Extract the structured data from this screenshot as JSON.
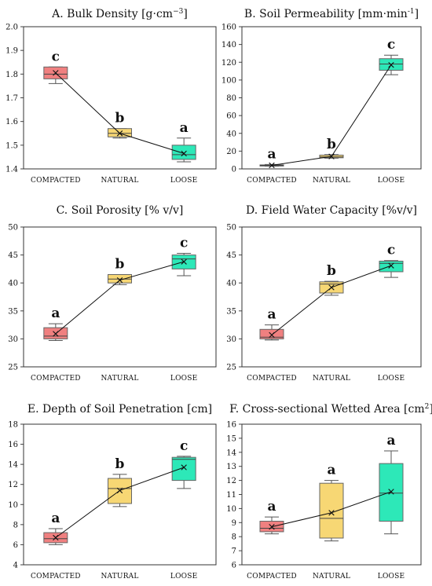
{
  "chart_data": [
    {
      "type": "box",
      "title": "A.  Bulk Density [g·cm",
      "title_sup": "−3",
      "title_end": "]",
      "categories": [
        "COMPACTED",
        "NATURAL",
        "LOOSE"
      ],
      "ylim": [
        1.4,
        2.0
      ],
      "yticks": [
        "1.4",
        "1.5",
        "1.6",
        "1.7",
        "1.8",
        "1.9",
        "2.0"
      ],
      "colors": [
        "#f08080",
        "#f7d774",
        "#2de8b8"
      ],
      "boxes": [
        {
          "min": 1.76,
          "q1": 1.78,
          "median": 1.8,
          "q3": 1.83,
          "max": 1.83,
          "mean": 1.805
        },
        {
          "min": 1.53,
          "q1": 1.535,
          "median": 1.55,
          "q3": 1.57,
          "max": 1.57,
          "mean": 1.55
        },
        {
          "min": 1.43,
          "q1": 1.44,
          "median": 1.46,
          "q3": 1.5,
          "max": 1.53,
          "mean": 1.465
        }
      ],
      "letters": [
        "c",
        "b",
        "a"
      ]
    },
    {
      "type": "box",
      "title": "B.  Soil Permeability [mm·min",
      "title_sup": "-1",
      "title_end": "]",
      "categories": [
        "COMPACTED",
        "NATURAL",
        "LOOSE"
      ],
      "ylim": [
        0,
        160
      ],
      "yticks": [
        "0",
        "20",
        "40",
        "60",
        "80",
        "100",
        "120",
        "140",
        "160"
      ],
      "colors": [
        "#f08080",
        "#f7d774",
        "#2de8b8"
      ],
      "boxes": [
        {
          "min": 3,
          "q1": 3.5,
          "median": 4,
          "q3": 4.5,
          "max": 5,
          "mean": 4
        },
        {
          "min": 12,
          "q1": 12.5,
          "median": 13.5,
          "q3": 15.5,
          "max": 16,
          "mean": 14
        },
        {
          "min": 106,
          "q1": 111,
          "median": 118,
          "q3": 124,
          "max": 128,
          "mean": 117
        }
      ],
      "letters": [
        "a",
        "b",
        "c"
      ]
    },
    {
      "type": "box",
      "title": "C.  Soil Porosity [% v/v]",
      "title_sup": "",
      "title_end": "",
      "categories": [
        "COMPACTED",
        "NATURAL",
        "LOOSE"
      ],
      "ylim": [
        25,
        50
      ],
      "yticks": [
        "25",
        "30",
        "35",
        "40",
        "45",
        "50"
      ],
      "colors": [
        "#f08080",
        "#f7d774",
        "#2de8b8"
      ],
      "boxes": [
        {
          "min": 29.7,
          "q1": 30.0,
          "median": 30.5,
          "q3": 32.0,
          "max": 32.7,
          "mean": 30.9
        },
        {
          "min": 39.7,
          "q1": 40.0,
          "median": 40.7,
          "q3": 41.5,
          "max": 41.5,
          "mean": 40.5
        },
        {
          "min": 41.3,
          "q1": 42.5,
          "median": 44.3,
          "q3": 45.0,
          "max": 45.3,
          "mean": 43.8
        }
      ],
      "letters": [
        "a",
        "b",
        "c"
      ]
    },
    {
      "type": "box",
      "title": "D.  Field Water Capacity [%v/v]",
      "title_sup": "",
      "title_end": "",
      "categories": [
        "COMPACTED",
        "NATURAL",
        "LOOSE"
      ],
      "ylim": [
        25,
        50
      ],
      "yticks": [
        "25",
        "30",
        "35",
        "40",
        "45",
        "50"
      ],
      "colors": [
        "#f08080",
        "#f7d774",
        "#2de8b8"
      ],
      "boxes": [
        {
          "min": 29.8,
          "q1": 30.0,
          "median": 30.3,
          "q3": 31.7,
          "max": 32.5,
          "mean": 30.7
        },
        {
          "min": 37.8,
          "q1": 38.2,
          "median": 39.8,
          "q3": 40.2,
          "max": 40.3,
          "mean": 39.2
        },
        {
          "min": 41.0,
          "q1": 42.0,
          "median": 43.5,
          "q3": 43.9,
          "max": 44.0,
          "mean": 43.1
        }
      ],
      "letters": [
        "a",
        "b",
        "c"
      ]
    },
    {
      "type": "box",
      "title": "E.  Depth of Soil Penetration [cm]",
      "title_sup": "",
      "title_end": "",
      "categories": [
        "COMPACTED",
        "NATURAL",
        "LOOSE"
      ],
      "ylim": [
        4,
        18
      ],
      "yticks": [
        "4",
        "6",
        "8",
        "10",
        "12",
        "14",
        "16",
        "18"
      ],
      "colors": [
        "#f08080",
        "#f7d774",
        "#2de8b8"
      ],
      "boxes": [
        {
          "min": 6.0,
          "q1": 6.2,
          "median": 6.6,
          "q3": 7.2,
          "max": 7.6,
          "mean": 6.7
        },
        {
          "min": 9.8,
          "q1": 10.1,
          "median": 11.6,
          "q3": 12.6,
          "max": 13.0,
          "mean": 11.4
        },
        {
          "min": 11.6,
          "q1": 12.4,
          "median": 14.5,
          "q3": 14.7,
          "max": 14.8,
          "mean": 13.7
        }
      ],
      "letters": [
        "a",
        "b",
        "c"
      ]
    },
    {
      "type": "box",
      "title": "F.  Cross-sectional Wetted Area [cm",
      "title_sup": "2",
      "title_end": "]",
      "categories": [
        "COMPACTED",
        "NATURAL",
        "LOOSE"
      ],
      "ylim": [
        6,
        16
      ],
      "yticks": [
        "6",
        "7",
        "8",
        "9",
        "10",
        "11",
        "12",
        "13",
        "14",
        "15",
        "16"
      ],
      "colors": [
        "#f08080",
        "#f7d774",
        "#2de8b8"
      ],
      "boxes": [
        {
          "min": 8.2,
          "q1": 8.35,
          "median": 8.6,
          "q3": 9.1,
          "max": 9.4,
          "mean": 8.7
        },
        {
          "min": 7.7,
          "q1": 7.9,
          "median": 9.3,
          "q3": 11.8,
          "max": 12.0,
          "mean": 9.7
        },
        {
          "min": 8.2,
          "q1": 9.1,
          "median": 11.1,
          "q3": 13.2,
          "max": 14.1,
          "mean": 11.2
        }
      ],
      "letters": [
        "a",
        "a",
        "a"
      ]
    }
  ]
}
